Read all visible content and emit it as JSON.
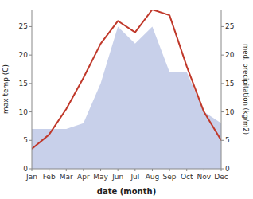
{
  "chart_data": {
    "type": "line",
    "categories": [
      "Jan",
      "Feb",
      "Mar",
      "Apr",
      "May",
      "Jun",
      "Jul",
      "Aug",
      "Sep",
      "Oct",
      "Nov",
      "Dec"
    ],
    "x_label": "date (month)",
    "y_label": "max temp (C)",
    "y2_label": "med. precipitation (kg/m2)",
    "series": [
      {
        "type": "area",
        "axis": "y2",
        "color": "#c8d0ea",
        "values": [
          7.0,
          7.0,
          7.0,
          8.0,
          15.0,
          25.0,
          22.0,
          25.0,
          17.0,
          17.0,
          10.0,
          8.0
        ]
      },
      {
        "type": "line",
        "color": "#c0392b",
        "values": [
          3.5,
          6.0,
          10.5,
          16.0,
          22.0,
          26.0,
          24.0,
          28.0,
          27.0,
          18.0,
          10.0,
          5.0
        ]
      }
    ],
    "ylim": [
      0,
      28
    ],
    "yticks": [
      0,
      5,
      10,
      15,
      20,
      25
    ],
    "y2lim": [
      0,
      28
    ],
    "y2ticks": [
      0,
      5,
      10,
      15,
      20,
      25
    ]
  }
}
